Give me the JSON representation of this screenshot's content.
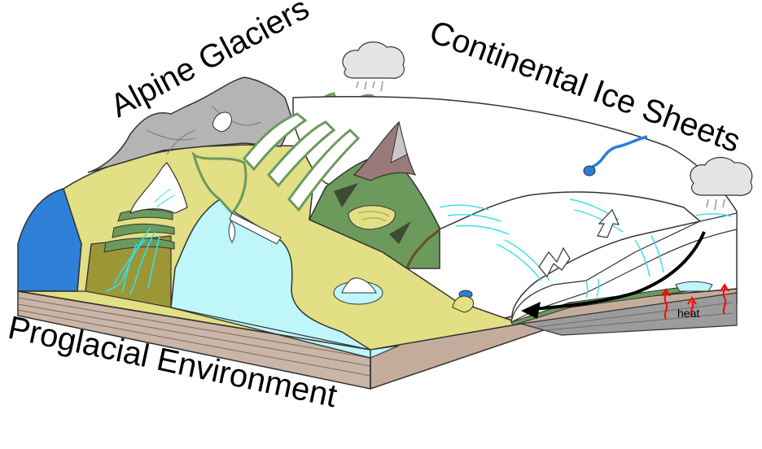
{
  "labels": {
    "alpine": "Alpine Glaciers",
    "continental": "Continental Ice Sheets",
    "proglacial": "Proglacial Environment",
    "heat": "heat"
  },
  "colors": {
    "ocean": "#2e7fd8",
    "meltwater_lake": "#bff6fa",
    "plain": "#e2df84",
    "dark_plain": "#9d9636",
    "forest": "#6b9a5c",
    "rock_gray": "#b4b4b4",
    "mountain_brown": "#9a7a78",
    "ice": "#ffffff",
    "stream": "#34e0e7",
    "soil": "#c9b6a6",
    "bedrock": "#9c9c9c",
    "heat_arrow": "#ff0000"
  },
  "icons": [
    "cloud-icon",
    "flow-arrow-icon",
    "compression-arrow-icon",
    "heat-arrow-icon"
  ]
}
